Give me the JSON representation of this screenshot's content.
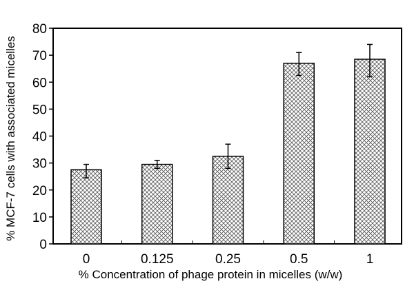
{
  "chart_data": {
    "type": "bar",
    "categories": [
      "0",
      "0.125",
      "0.25",
      "0.5",
      "1"
    ],
    "values": [
      27.5,
      29.5,
      32.5,
      67,
      68.5
    ],
    "error_bars": [
      {
        "low": 24.5,
        "high": 29.5
      },
      {
        "low": 28.0,
        "high": 31.0
      },
      {
        "low": 28.0,
        "high": 37.0
      },
      {
        "low": 62.5,
        "high": 71.0
      },
      {
        "low": 62.0,
        "high": 74.0
      }
    ],
    "title": "",
    "xlabel": "% Concentration of phage  protein  in  micelles  (w/w)",
    "ylabel": "% MCF-7 cells with associated  micelles",
    "ylim": [
      0,
      80
    ],
    "yticks": [
      0,
      10,
      20,
      30,
      40,
      50,
      60,
      70,
      80
    ],
    "bar_pattern": "crosshatch",
    "grid": false,
    "legend": "none"
  }
}
